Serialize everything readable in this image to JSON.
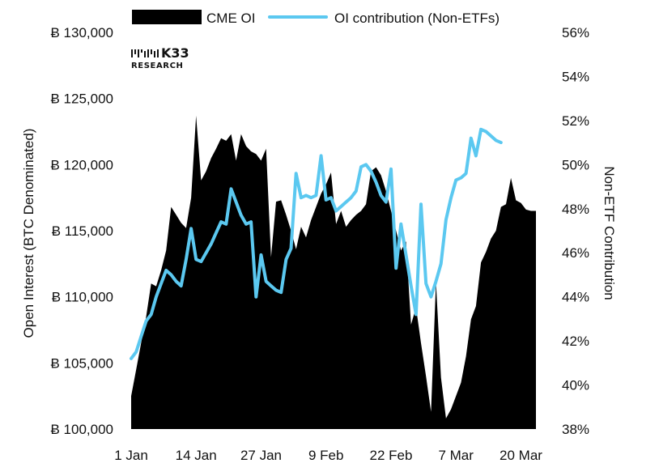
{
  "brand": {
    "name": "K33",
    "sub": "RESEARCH"
  },
  "colors": {
    "area": "#000000",
    "line": "#5bc8f0"
  },
  "chart_data": {
    "type": "area",
    "title": "",
    "legend": [
      {
        "name": "CME OI",
        "type": "area"
      },
      {
        "name": "OI contribution (Non-ETFs)",
        "type": "line"
      }
    ],
    "legend_position": "top",
    "y_left": {
      "label": "Open Interest (BTC Denominated)",
      "min": 100000,
      "max": 130000,
      "ticks": [
        100000,
        105000,
        110000,
        115000,
        120000,
        125000,
        130000
      ],
      "tick_labels": [
        "Ƀ 100,000",
        "Ƀ 105,000",
        "Ƀ 110,000",
        "Ƀ 115,000",
        "Ƀ 120,000",
        "Ƀ 125,000",
        "Ƀ 130,000"
      ]
    },
    "y_right": {
      "label": "Non-ETF Contribution",
      "min": 38,
      "max": 56,
      "ticks": [
        38,
        40,
        42,
        44,
        46,
        48,
        50,
        52,
        54,
        56
      ],
      "tick_labels": [
        "38%",
        "40%",
        "42%",
        "44%",
        "46%",
        "48%",
        "50%",
        "52%",
        "54%",
        "56%"
      ]
    },
    "x_axis": {
      "label": "",
      "min_day": 0,
      "max_day": 81,
      "ticks": [
        0,
        13,
        26,
        39,
        52,
        65,
        78
      ],
      "tick_labels": [
        "1 Jan",
        "14 Jan",
        "27 Jan",
        "9 Feb",
        "22 Feb",
        "7 Mar",
        "20 Mar"
      ]
    },
    "grid": false,
    "series": [
      {
        "name": "CME OI",
        "type": "area",
        "axis": "left",
        "unit": "BTC",
        "points": [
          [
            0,
            102500
          ],
          [
            1,
            104500
          ],
          [
            2,
            106500
          ],
          [
            3,
            108500
          ],
          [
            4,
            111000
          ],
          [
            5,
            110800
          ],
          [
            6,
            112000
          ],
          [
            7,
            113500
          ],
          [
            8,
            116800
          ],
          [
            9,
            116200
          ],
          [
            10,
            115600
          ],
          [
            11,
            115200
          ],
          [
            12,
            117500
          ],
          [
            13,
            123700
          ],
          [
            14,
            118800
          ],
          [
            15,
            119500
          ],
          [
            16,
            120500
          ],
          [
            17,
            121200
          ],
          [
            18,
            122000
          ],
          [
            19,
            121800
          ],
          [
            20,
            122300
          ],
          [
            21,
            120300
          ],
          [
            22,
            122300
          ],
          [
            23,
            121400
          ],
          [
            24,
            121000
          ],
          [
            25,
            120800
          ],
          [
            26,
            120300
          ],
          [
            27,
            121200
          ],
          [
            28,
            113000
          ],
          [
            29,
            117200
          ],
          [
            30,
            117300
          ],
          [
            31,
            116200
          ],
          [
            32,
            115000
          ],
          [
            33,
            113600
          ],
          [
            34,
            115300
          ],
          [
            35,
            114500
          ],
          [
            36,
            115800
          ],
          [
            37,
            116800
          ],
          [
            38,
            117800
          ],
          [
            39,
            118500
          ],
          [
            40,
            119400
          ],
          [
            41,
            115500
          ],
          [
            42,
            116500
          ],
          [
            43,
            115300
          ],
          [
            44,
            115800
          ],
          [
            45,
            116200
          ],
          [
            46,
            116500
          ],
          [
            47,
            117000
          ],
          [
            48,
            119500
          ],
          [
            49,
            119800
          ],
          [
            50,
            119200
          ],
          [
            51,
            118000
          ],
          [
            52,
            116500
          ],
          [
            53,
            115000
          ],
          [
            54,
            113500
          ],
          [
            55,
            114200
          ],
          [
            56,
            107900
          ],
          [
            57,
            109200
          ],
          [
            58,
            106500
          ],
          [
            59,
            104000
          ],
          [
            60,
            101300
          ],
          [
            61,
            111100
          ],
          [
            62,
            103900
          ],
          [
            63,
            100800
          ],
          [
            64,
            101500
          ],
          [
            65,
            102500
          ],
          [
            66,
            103500
          ],
          [
            67,
            105500
          ],
          [
            68,
            108300
          ],
          [
            69,
            109300
          ],
          [
            70,
            112600
          ],
          [
            71,
            113400
          ],
          [
            72,
            114400
          ],
          [
            73,
            115000
          ],
          [
            74,
            116800
          ],
          [
            75,
            117000
          ],
          [
            76,
            119000
          ],
          [
            77,
            117300
          ],
          [
            78,
            117100
          ],
          [
            79,
            116600
          ],
          [
            80,
            116500
          ],
          [
            81,
            116500
          ]
        ]
      },
      {
        "name": "OI contribution (Non-ETFs)",
        "type": "line",
        "axis": "right",
        "unit": "%",
        "points": [
          [
            0,
            41.2
          ],
          [
            1,
            41.5
          ],
          [
            2,
            42.2
          ],
          [
            3,
            42.9
          ],
          [
            4,
            43.2
          ],
          [
            5,
            44.0
          ],
          [
            6,
            44.6
          ],
          [
            7,
            45.2
          ],
          [
            8,
            45.0
          ],
          [
            9,
            44.7
          ],
          [
            10,
            44.5
          ],
          [
            11,
            45.7
          ],
          [
            12,
            47.1
          ],
          [
            13,
            45.7
          ],
          [
            14,
            45.6
          ],
          [
            15,
            46.0
          ],
          [
            16,
            46.4
          ],
          [
            17,
            46.9
          ],
          [
            18,
            47.4
          ],
          [
            19,
            47.3
          ],
          [
            20,
            48.9
          ],
          [
            21,
            48.3
          ],
          [
            22,
            47.7
          ],
          [
            23,
            47.3
          ],
          [
            24,
            47.4
          ],
          [
            25,
            44.0
          ],
          [
            26,
            45.9
          ],
          [
            27,
            44.7
          ],
          [
            28,
            44.5
          ],
          [
            29,
            44.3
          ],
          [
            30,
            44.2
          ],
          [
            31,
            45.7
          ],
          [
            32,
            46.2
          ],
          [
            33,
            49.6
          ],
          [
            34,
            48.5
          ],
          [
            35,
            48.6
          ],
          [
            36,
            48.5
          ],
          [
            37,
            48.6
          ],
          [
            38,
            50.4
          ],
          [
            39,
            48.4
          ],
          [
            40,
            48.5
          ],
          [
            41,
            47.9
          ],
          [
            42,
            48.1
          ],
          [
            43,
            48.3
          ],
          [
            44,
            48.5
          ],
          [
            45,
            48.8
          ],
          [
            46,
            49.9
          ],
          [
            47,
            50.0
          ],
          [
            48,
            49.7
          ],
          [
            49,
            49.2
          ],
          [
            50,
            48.6
          ],
          [
            51,
            48.3
          ],
          [
            52,
            49.8
          ],
          [
            53,
            45.3
          ],
          [
            54,
            47.3
          ],
          [
            55,
            45.9
          ],
          [
            56,
            44.5
          ],
          [
            57,
            43.2
          ],
          [
            58,
            48.2
          ],
          [
            59,
            44.6
          ],
          [
            60,
            44.0
          ],
          [
            61,
            44.7
          ],
          [
            62,
            45.5
          ],
          [
            63,
            47.5
          ],
          [
            64,
            48.5
          ],
          [
            65,
            49.3
          ],
          [
            66,
            49.4
          ],
          [
            67,
            49.6
          ],
          [
            68,
            51.2
          ],
          [
            69,
            50.4
          ],
          [
            70,
            51.6
          ],
          [
            71,
            51.5
          ],
          [
            72,
            51.3
          ],
          [
            73,
            51.1
          ],
          [
            74,
            51.0
          ]
        ]
      }
    ]
  }
}
